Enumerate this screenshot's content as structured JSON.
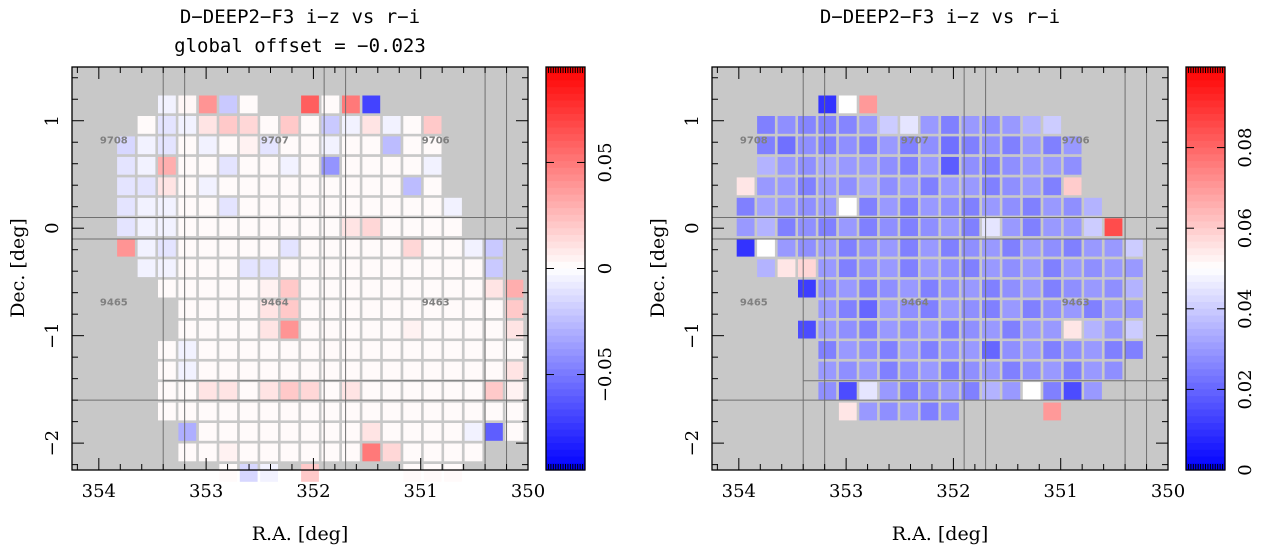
{
  "chart_data": [
    {
      "type": "heatmap",
      "title": "D−DEEP2−F3  i−z vs r−i",
      "subtitle": "global offset = −0.023",
      "xlabel": "R.A. [deg]",
      "ylabel": "Dec. [deg]",
      "xlim": [
        354.25,
        350
      ],
      "ylim": [
        -2.25,
        1.5
      ],
      "xticks": [
        354,
        353,
        352,
        351,
        350
      ],
      "yticks": [
        1,
        0,
        -1,
        -2
      ],
      "colorbar": {
        "min": -0.095,
        "max": 0.095,
        "ticks": [
          0.05,
          0,
          -0.05
        ],
        "tick_labels": [
          "0.05",
          "0",
          "−0.05"
        ],
        "low_color": "#0000ff",
        "mid_color": "#ffffff",
        "high_color": "#ff0000"
      },
      "fields": [
        {
          "label": "9708",
          "ra": 353.86,
          "dec": 0.79
        },
        {
          "label": "9707",
          "ra": 352.36,
          "dec": 0.79
        },
        {
          "label": "9706",
          "ra": 350.86,
          "dec": 0.79
        },
        {
          "label": "9465",
          "ra": 353.86,
          "dec": -0.72
        },
        {
          "label": "9464",
          "ra": 352.36,
          "dec": -0.72
        },
        {
          "label": "9463",
          "ra": 350.86,
          "dec": -0.72
        }
      ],
      "cells": [
        [
          null,
          null,
          null,
          -0.005,
          0.003,
          0.04,
          -0.02,
          0.002,
          null,
          null,
          0.06,
          0.002,
          0.05,
          -0.07,
          null,
          null,
          null,
          null,
          null,
          null
        ],
        [
          null,
          null,
          0.002,
          -0.01,
          -0.005,
          0.01,
          0.02,
          0.015,
          0.002,
          0.02,
          0.002,
          -0.02,
          -0.005,
          0.01,
          -0.005,
          0.002,
          0.02,
          null,
          null,
          null
        ],
        [
          null,
          -0.015,
          -0.005,
          -0.01,
          0.002,
          -0.005,
          0.002,
          0.005,
          -0.01,
          0.002,
          0.002,
          -0.005,
          0.002,
          0.002,
          -0.025,
          0.002,
          0.002,
          null,
          null,
          null
        ],
        [
          null,
          -0.01,
          -0.005,
          0.03,
          0.002,
          0.002,
          -0.01,
          0.002,
          0.002,
          -0.005,
          0.002,
          -0.04,
          0.002,
          0.002,
          0.002,
          0.002,
          -0.005,
          null,
          null,
          null
        ],
        [
          null,
          -0.01,
          -0.01,
          0.01,
          0.002,
          -0.005,
          0.002,
          0.002,
          0.002,
          0.002,
          0.002,
          0.002,
          0.002,
          0.002,
          0.002,
          -0.025,
          0.002,
          null,
          null,
          null
        ],
        [
          null,
          -0.01,
          -0.005,
          -0.005,
          0.002,
          0.002,
          -0.01,
          0.002,
          0.002,
          0.002,
          0.002,
          0.002,
          0.002,
          0.002,
          0.002,
          0.002,
          0.002,
          -0.005,
          null,
          null
        ],
        [
          null,
          -0.01,
          -0.005,
          -0.005,
          0.002,
          0.002,
          0.002,
          0.002,
          0.002,
          0.002,
          0.002,
          0.002,
          0.01,
          0.015,
          0.002,
          0.002,
          0.002,
          0.002,
          null,
          null
        ],
        [
          null,
          0.04,
          -0.005,
          -0.01,
          0.002,
          0.002,
          0.002,
          0.002,
          0.002,
          -0.01,
          0.002,
          0.002,
          0.002,
          0.002,
          0.002,
          0.015,
          0.002,
          0.002,
          -0.005,
          -0.02
        ],
        [
          null,
          null,
          -0.005,
          -0.005,
          0.002,
          0.002,
          0.002,
          -0.01,
          -0.01,
          0.002,
          0.002,
          0.002,
          0.002,
          0.002,
          0.002,
          0.002,
          0.002,
          0.002,
          0.002,
          -0.02
        ],
        [
          null,
          null,
          null,
          0.002,
          0.002,
          0.002,
          0.002,
          0.002,
          0.005,
          0.02,
          0.002,
          0.002,
          0.002,
          0.002,
          0.002,
          0.002,
          0.002,
          0.002,
          0.002,
          0.01,
          0.03
        ],
        [
          null,
          null,
          null,
          null,
          0.002,
          0.002,
          0.002,
          0.002,
          0.01,
          0.02,
          0.002,
          0.002,
          0.002,
          0.002,
          0.002,
          0.002,
          0.002,
          0.002,
          0.002,
          0.002,
          0.02
        ],
        [
          null,
          null,
          null,
          null,
          0.002,
          0.002,
          0.002,
          0.002,
          0.01,
          0.04,
          0.002,
          0.002,
          0.002,
          0.002,
          0.002,
          0.005,
          0.002,
          0.002,
          0.002,
          0.002,
          0.01
        ],
        [
          null,
          null,
          null,
          0.002,
          -0.005,
          0.002,
          0.002,
          0.002,
          0.002,
          0.002,
          0.002,
          0.002,
          0.002,
          0.002,
          0.002,
          0.002,
          0.002,
          0.002,
          0.002,
          0.002,
          0.002
        ],
        [
          null,
          null,
          null,
          0.002,
          -0.005,
          0.002,
          0.002,
          0.002,
          0.002,
          0.002,
          0.002,
          0.002,
          0.002,
          0.002,
          0.002,
          0.002,
          0.002,
          0.002,
          0.002,
          0.002,
          0.01
        ],
        [
          null,
          null,
          null,
          0.002,
          0.002,
          0.01,
          0.01,
          0.002,
          0.01,
          0.02,
          0.015,
          0.002,
          0.01,
          0.002,
          0.002,
          0.002,
          0.002,
          0.002,
          0.002,
          0.02,
          0.005
        ],
        [
          null,
          null,
          null,
          0.002,
          0.002,
          0.002,
          0.002,
          0.002,
          0.002,
          0.002,
          0.002,
          0.002,
          0.002,
          0.002,
          0.002,
          0.002,
          0.002,
          0.002,
          0.002,
          0.002,
          0.002
        ],
        [
          null,
          null,
          null,
          null,
          -0.03,
          0.002,
          0.002,
          0.002,
          0.002,
          0.002,
          0.002,
          0.002,
          0.002,
          0.01,
          0.002,
          0.002,
          0.002,
          0.002,
          -0.005,
          -0.06,
          0.002
        ],
        [
          null,
          null,
          null,
          null,
          0.002,
          0.002,
          0.005,
          0.002,
          0.002,
          0.002,
          0.002,
          0.002,
          0.002,
          0.05,
          0.015,
          0.002,
          0.002,
          0.002,
          0.002,
          null,
          null
        ],
        [
          null,
          null,
          null,
          null,
          null,
          null,
          0.002,
          -0.015,
          -0.005,
          null,
          0.02,
          null,
          null,
          null,
          null,
          0.002,
          0.002,
          0.002,
          null,
          null,
          null
        ]
      ]
    },
    {
      "type": "heatmap",
      "title": "D−DEEP2−F3  i−z vs r−i",
      "xlabel": "R.A. [deg]",
      "ylabel": "Dec. [deg]",
      "xlim": [
        354.25,
        350
      ],
      "ylim": [
        -2.25,
        1.5
      ],
      "xticks": [
        354,
        353,
        352,
        351,
        350
      ],
      "yticks": [
        1,
        0,
        -1,
        -2
      ],
      "colorbar": {
        "min": 0,
        "max": 0.1,
        "ticks": [
          0.08,
          0.06,
          0.04,
          0.02,
          0
        ],
        "tick_labels": [
          "0.08",
          "0.06",
          "0.04",
          "0.02",
          "0"
        ],
        "low_color": "#0000ff",
        "mid_color": "#ffffff",
        "high_color": "#ff0000",
        "mid_value": 0.05
      },
      "fields": [
        {
          "label": "9708",
          "ra": 353.86,
          "dec": 0.79
        },
        {
          "label": "9707",
          "ra": 352.36,
          "dec": 0.79
        },
        {
          "label": "9706",
          "ra": 350.86,
          "dec": 0.79
        },
        {
          "label": "9465",
          "ra": 353.86,
          "dec": -0.72
        },
        {
          "label": "9464",
          "ra": 352.36,
          "dec": -0.72
        },
        {
          "label": "9463",
          "ra": 350.86,
          "dec": -0.72
        }
      ],
      "cells": [
        [
          null,
          null,
          null,
          null,
          0.01,
          0.05,
          0.07,
          null,
          null,
          null,
          null,
          null,
          null,
          null,
          null,
          null,
          null,
          null,
          null,
          null
        ],
        [
          null,
          0.025,
          0.028,
          0.026,
          0.025,
          0.026,
          0.03,
          0.04,
          0.045,
          0.03,
          0.025,
          0.03,
          0.028,
          0.03,
          0.035,
          0.04,
          null,
          null,
          null,
          null
        ],
        [
          null,
          0.025,
          0.022,
          0.028,
          0.025,
          0.028,
          0.025,
          0.03,
          0.025,
          0.028,
          0.022,
          0.025,
          0.028,
          0.025,
          0.03,
          0.025,
          0.03,
          null,
          null,
          null
        ],
        [
          null,
          0.035,
          0.03,
          0.028,
          0.032,
          0.03,
          0.03,
          0.028,
          0.025,
          0.03,
          0.018,
          0.028,
          0.025,
          0.028,
          0.03,
          0.03,
          0.028,
          null,
          null,
          null
        ],
        [
          0.055,
          0.03,
          0.03,
          0.025,
          0.03,
          0.028,
          0.032,
          0.028,
          0.03,
          0.025,
          0.03,
          0.03,
          0.025,
          0.028,
          0.03,
          0.025,
          0.06,
          null,
          null,
          null
        ],
        [
          0.025,
          0.032,
          0.03,
          0.028,
          0.03,
          0.05,
          0.025,
          0.03,
          0.025,
          0.03,
          0.028,
          0.025,
          0.03,
          0.028,
          0.025,
          0.03,
          0.028,
          0.035,
          null,
          null
        ],
        [
          0.03,
          0.035,
          0.025,
          0.028,
          0.025,
          0.03,
          0.025,
          0.028,
          0.025,
          0.028,
          0.03,
          0.025,
          0.045,
          0.03,
          0.025,
          0.03,
          0.03,
          0.04,
          0.085,
          null
        ],
        [
          0.01,
          0.05,
          0.03,
          0.028,
          0.03,
          0.025,
          0.028,
          0.03,
          0.025,
          0.03,
          0.025,
          0.028,
          0.03,
          0.025,
          0.03,
          0.028,
          0.025,
          0.03,
          0.03,
          0.04
        ],
        [
          null,
          0.035,
          0.055,
          0.058,
          0.03,
          0.025,
          0.028,
          0.03,
          0.025,
          0.03,
          0.028,
          0.025,
          0.03,
          0.028,
          0.03,
          0.025,
          0.03,
          0.028,
          0.03,
          0.03
        ],
        [
          null,
          null,
          null,
          0.012,
          0.028,
          0.03,
          0.025,
          0.028,
          0.03,
          0.025,
          0.028,
          0.03,
          0.025,
          0.028,
          0.03,
          0.025,
          0.028,
          0.03,
          0.028,
          0.035
        ],
        [
          null,
          null,
          null,
          null,
          0.03,
          0.025,
          0.02,
          0.03,
          0.028,
          0.025,
          0.03,
          0.028,
          0.025,
          0.03,
          0.025,
          0.028,
          0.03,
          0.025,
          0.03,
          0.03
        ],
        [
          null,
          null,
          null,
          0.015,
          0.03,
          0.028,
          0.025,
          0.03,
          0.028,
          0.03,
          0.025,
          0.028,
          0.03,
          0.025,
          0.03,
          0.03,
          0.055,
          0.035,
          0.03,
          0.04
        ],
        [
          null,
          null,
          null,
          null,
          0.025,
          0.03,
          0.028,
          0.025,
          0.03,
          0.025,
          0.028,
          0.03,
          0.02,
          0.028,
          0.03,
          0.025,
          0.028,
          0.03,
          0.025,
          0.025
        ],
        [
          null,
          null,
          null,
          null,
          0.03,
          0.028,
          0.03,
          0.025,
          0.028,
          0.03,
          0.025,
          0.028,
          0.03,
          0.025,
          0.028,
          0.03,
          0.025,
          0.03,
          0.028,
          null
        ],
        [
          null,
          null,
          null,
          null,
          0.028,
          0.015,
          0.045,
          0.03,
          0.025,
          0.028,
          0.03,
          0.025,
          0.035,
          0.03,
          0.05,
          0.025,
          0.015,
          0.03,
          null,
          null
        ],
        [
          null,
          null,
          null,
          null,
          null,
          0.055,
          0.03,
          0.028,
          0.03,
          0.025,
          0.028,
          null,
          null,
          null,
          null,
          0.07,
          null,
          null,
          null,
          null
        ]
      ]
    }
  ]
}
